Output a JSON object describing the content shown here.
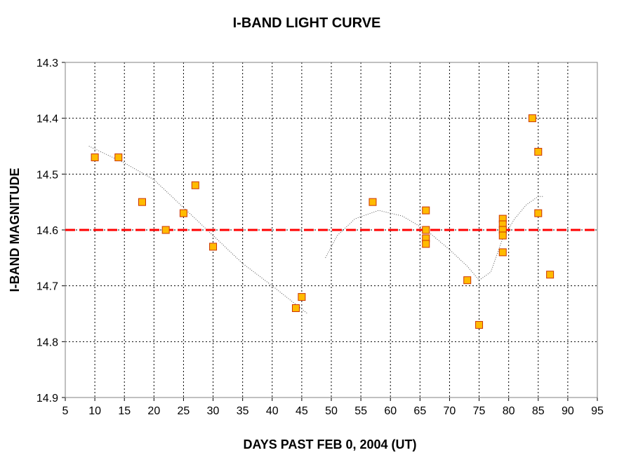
{
  "chart_data": {
    "type": "scatter",
    "title": "I-BAND LIGHT CURVE",
    "xlabel": "DAYS PAST FEB 0, 2004 (UT)",
    "ylabel": "I-BAND MAGNITUDE",
    "xlim": [
      5,
      95
    ],
    "ylim": [
      14.3,
      14.9
    ],
    "y_inverted": true,
    "grid": true,
    "grid_style": "dotted",
    "xticks": [
      5,
      10,
      15,
      20,
      25,
      30,
      35,
      40,
      45,
      50,
      55,
      60,
      65,
      70,
      75,
      80,
      85,
      90,
      95
    ],
    "yticks": [
      14.3,
      14.4,
      14.5,
      14.6,
      14.7,
      14.8,
      14.9
    ],
    "xtick_labels": [
      "5",
      "10",
      "15",
      "20",
      "25",
      "30",
      "35",
      "40",
      "45",
      "50",
      "55",
      "60",
      "65",
      "70",
      "75",
      "80",
      "85",
      "90",
      "95"
    ],
    "ytick_labels": [
      "14.3",
      "14.4",
      "14.5",
      "14.6",
      "14.7",
      "14.8",
      "14.9"
    ],
    "points": [
      {
        "x": 10,
        "y": 14.47
      },
      {
        "x": 14,
        "y": 14.47
      },
      {
        "x": 18,
        "y": 14.55
      },
      {
        "x": 22,
        "y": 14.6
      },
      {
        "x": 25,
        "y": 14.57
      },
      {
        "x": 27,
        "y": 14.52
      },
      {
        "x": 30,
        "y": 14.63
      },
      {
        "x": 44,
        "y": 14.74
      },
      {
        "x": 45,
        "y": 14.72
      },
      {
        "x": 57,
        "y": 14.55
      },
      {
        "x": 66,
        "y": 14.565
      },
      {
        "x": 66,
        "y": 14.6
      },
      {
        "x": 66,
        "y": 14.615
      },
      {
        "x": 66,
        "y": 14.625
      },
      {
        "x": 73,
        "y": 14.69
      },
      {
        "x": 75,
        "y": 14.77
      },
      {
        "x": 79,
        "y": 14.58
      },
      {
        "x": 79,
        "y": 14.59
      },
      {
        "x": 79,
        "y": 14.6
      },
      {
        "x": 79,
        "y": 14.61
      },
      {
        "x": 79,
        "y": 14.64
      },
      {
        "x": 84,
        "y": 14.4
      },
      {
        "x": 85,
        "y": 14.46
      },
      {
        "x": 85,
        "y": 14.57
      },
      {
        "x": 87,
        "y": 14.68
      }
    ],
    "reference_line": {
      "y": 14.6,
      "color": "#ff0000",
      "style": "dashed"
    },
    "trend_segments": [
      [
        [
          9,
          14.45
        ],
        [
          15,
          14.48
        ],
        [
          20,
          14.51
        ],
        [
          25,
          14.56
        ],
        [
          30,
          14.61
        ],
        [
          35,
          14.66
        ],
        [
          40,
          14.7
        ],
        [
          46,
          14.75
        ]
      ],
      [
        [
          49,
          14.65
        ],
        [
          51,
          14.61
        ],
        [
          54,
          14.58
        ],
        [
          58,
          14.565
        ],
        [
          62,
          14.575
        ],
        [
          66,
          14.6
        ],
        [
          70,
          14.635
        ],
        [
          73,
          14.665
        ],
        [
          75,
          14.69
        ],
        [
          77,
          14.675
        ],
        [
          79,
          14.615
        ],
        [
          81,
          14.58
        ],
        [
          83,
          14.555
        ],
        [
          85,
          14.54
        ],
        [
          86,
          14.54
        ]
      ]
    ],
    "colors": {
      "marker_fill": "#ffbb00",
      "marker_stroke": "#cc3300",
      "grid": "#000000",
      "trend": "#555555",
      "axis": "#808080"
    }
  }
}
